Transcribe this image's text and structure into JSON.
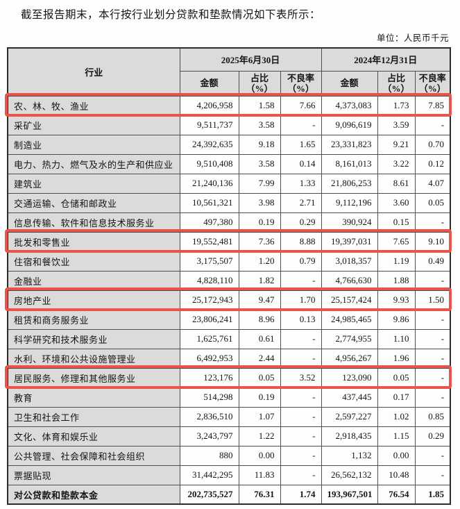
{
  "intro": "截至报告期末，本行按行业划分贷款和垫款情况如下表所示：",
  "unit_label": "单位：人民币千元",
  "table": {
    "industry_header": "行业",
    "period1": "2025年6月30日",
    "period2": "2024年12月31日",
    "sub_headers": [
      "金额",
      "占比\n（%）",
      "不良率\n（%）",
      "金额",
      "占比\n（%）",
      "不良率\n（%）"
    ],
    "header_bg": "#dcdbd9",
    "highlight_color": "#e8534a",
    "rows": [
      {
        "industry": "农、林、牧、渔业",
        "values": [
          "4,206,958",
          "1.58",
          "7.66",
          "4,373,083",
          "1.73",
          "7.85"
        ],
        "highlight": true,
        "total": false
      },
      {
        "industry": "采矿业",
        "values": [
          "9,511,737",
          "3.58",
          "-",
          "9,096,619",
          "3.59",
          "-"
        ],
        "highlight": false,
        "total": false
      },
      {
        "industry": "制造业",
        "values": [
          "24,392,635",
          "9.18",
          "1.65",
          "23,331,823",
          "9.21",
          "0.70"
        ],
        "highlight": false,
        "total": false
      },
      {
        "industry": "电力、热力、燃气及水的生产和供应业",
        "values": [
          "9,510,408",
          "3.58",
          "0.14",
          "8,161,013",
          "3.22",
          "0.12"
        ],
        "highlight": false,
        "total": false
      },
      {
        "industry": "建筑业",
        "values": [
          "21,240,136",
          "7.99",
          "1.33",
          "21,806,253",
          "8.61",
          "4.07"
        ],
        "highlight": false,
        "total": false
      },
      {
        "industry": "交通运输、仓储和邮政业",
        "values": [
          "10,561,321",
          "3.98",
          "2.71",
          "9,112,196",
          "3.60",
          "0.05"
        ],
        "highlight": false,
        "total": false
      },
      {
        "industry": "信息传输、软件和信息技术服务业",
        "values": [
          "497,380",
          "0.19",
          "0.29",
          "390,924",
          "0.15",
          "-"
        ],
        "highlight": false,
        "total": false
      },
      {
        "industry": "批发和零售业",
        "values": [
          "19,552,481",
          "7.36",
          "8.88",
          "19,397,031",
          "7.65",
          "9.10"
        ],
        "highlight": true,
        "total": false
      },
      {
        "industry": "住宿和餐饮业",
        "values": [
          "3,175,507",
          "1.20",
          "0.79",
          "3,018,357",
          "1.19",
          "0.49"
        ],
        "highlight": false,
        "total": false
      },
      {
        "industry": "金融业",
        "values": [
          "4,828,110",
          "1.82",
          "-",
          "4,766,630",
          "1.88",
          "-"
        ],
        "highlight": false,
        "total": false
      },
      {
        "industry": "房地产业",
        "values": [
          "25,172,943",
          "9.47",
          "1.70",
          "25,157,424",
          "9.93",
          "1.50"
        ],
        "highlight": true,
        "total": false
      },
      {
        "industry": "租赁和商务服务业",
        "values": [
          "23,806,241",
          "8.96",
          "0.13",
          "24,985,465",
          "9.86",
          "-"
        ],
        "highlight": false,
        "total": false
      },
      {
        "industry": "科学研究和技术服务业",
        "values": [
          "1,625,761",
          "0.61",
          "-",
          "2,774,955",
          "1.10",
          "-"
        ],
        "highlight": false,
        "total": false
      },
      {
        "industry": "水利、环境和公共设施管理业",
        "values": [
          "6,492,953",
          "2.44",
          "-",
          "4,956,267",
          "1.96",
          "-"
        ],
        "highlight": false,
        "total": false
      },
      {
        "industry": "居民服务、修理和其他服务业",
        "values": [
          "123,176",
          "0.05",
          "3.52",
          "123,090",
          "0.05",
          "-"
        ],
        "highlight": true,
        "total": false
      },
      {
        "industry": "教育",
        "values": [
          "514,298",
          "0.19",
          "-",
          "437,445",
          "0.17",
          "-"
        ],
        "highlight": false,
        "total": false
      },
      {
        "industry": "卫生和社会工作",
        "values": [
          "2,836,510",
          "1.07",
          "-",
          "2,597,227",
          "1.02",
          "0.85"
        ],
        "highlight": false,
        "total": false
      },
      {
        "industry": "文化、体育和娱乐业",
        "values": [
          "3,243,797",
          "1.22",
          "-",
          "2,918,435",
          "1.15",
          "0.29"
        ],
        "highlight": false,
        "total": false
      },
      {
        "industry": "公共管理、社会保障和社会组织",
        "values": [
          "880",
          "0.00",
          "-",
          "1,132",
          "0.00",
          "-"
        ],
        "highlight": false,
        "total": false
      },
      {
        "industry": "票据贴现",
        "values": [
          "31,442,295",
          "11.83",
          "-",
          "26,562,132",
          "10.48",
          "-"
        ],
        "highlight": false,
        "total": false
      },
      {
        "industry": "对公贷款和垫款本金",
        "values": [
          "202,735,527",
          "76.31",
          "1.74",
          "193,967,501",
          "76.54",
          "1.85"
        ],
        "highlight": false,
        "total": true
      }
    ]
  }
}
